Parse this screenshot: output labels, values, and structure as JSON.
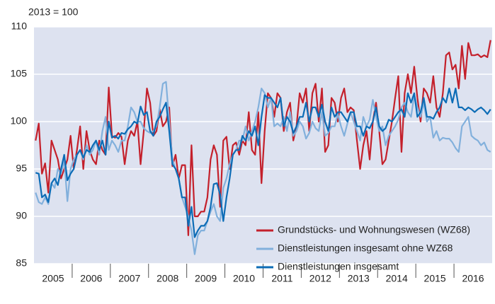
{
  "chart_data": {
    "type": "line",
    "title": "2013 = 100",
    "categories": [
      null,
      null,
      null,
      null,
      null,
      null,
      "2005",
      null,
      null,
      null,
      null,
      null,
      null,
      null,
      null,
      null,
      null,
      null,
      "2006",
      null,
      null,
      null,
      null,
      null,
      null,
      null,
      null,
      null,
      null,
      null,
      "2007",
      null,
      null,
      null,
      null,
      null,
      null,
      null,
      null,
      null,
      null,
      null,
      "2008",
      null,
      null,
      null,
      null,
      null,
      null,
      null,
      null,
      null,
      null,
      null,
      "2009",
      null,
      null,
      null,
      null,
      null,
      null,
      null,
      null,
      null,
      null,
      null,
      "2010",
      null,
      null,
      null,
      null,
      null,
      null,
      null,
      null,
      null,
      null,
      null,
      "2011",
      null,
      null,
      null,
      null,
      null,
      null,
      null,
      null,
      null,
      null,
      null,
      "2012",
      null,
      null,
      null,
      null,
      null,
      null,
      null,
      null,
      null,
      null,
      null,
      "2013",
      null,
      null,
      null,
      null,
      null,
      null,
      null,
      null,
      null,
      null,
      null,
      "2014",
      null,
      null,
      null,
      null,
      null,
      null,
      null,
      null,
      null,
      null,
      null,
      "2015",
      null,
      null,
      null,
      null,
      null,
      null,
      null,
      null,
      null,
      null,
      null,
      "2016",
      null,
      null,
      null,
      null,
      null
    ],
    "ylim": [
      85,
      110
    ],
    "yticks": [
      85,
      90,
      95,
      100,
      105,
      110
    ],
    "grid": true,
    "legend": "lower right",
    "series": [
      {
        "name": "Grundstücks- und Wohnungswesen (WZ68)",
        "color": "#c4202b",
        "values": [
          98,
          99.8,
          94.5,
          95.6,
          92.5,
          98,
          97,
          96,
          94,
          95,
          96,
          98.5,
          95,
          97,
          99.5,
          95,
          99,
          97,
          96,
          95.5,
          98,
          97,
          96.5,
          103.6,
          98.5,
          98.3,
          98.8,
          98.4,
          95.5,
          98,
          99,
          98.5,
          100,
          95.5,
          99,
          103.5,
          102,
          98.5,
          99,
          101.3,
          99.5,
          100,
          101.5,
          95.3,
          96.5,
          94,
          95.4,
          95.4,
          88,
          97.5,
          90,
          90,
          90.5,
          90.5,
          92,
          96,
          97.5,
          96.5,
          91,
          98,
          98.4,
          95,
          97.5,
          97.8,
          96.5,
          98,
          97.5,
          101,
          97,
          96.5,
          101,
          93.5,
          99,
          103,
          102.5,
          100.5,
          103,
          102.5,
          99,
          101,
          102,
          98,
          99.5,
          103,
          102,
          103.5,
          99,
          103,
          104,
          100,
          103.5,
          96.8,
          97.5,
          102.5,
          102,
          100,
          102.5,
          103.5,
          101,
          101.5,
          101.2,
          98,
          95,
          97.5,
          99,
          96,
          100,
          102,
          99,
          95.5,
          96,
          98,
          100,
          102.5,
          104.8,
          96.8,
          103,
          105,
          103,
          105.8,
          102.5,
          100,
          103.5,
          103,
          102,
          104.8,
          101.5,
          100.5,
          103,
          107,
          107.3,
          105.5,
          106,
          103.5,
          108,
          104.5,
          108.3,
          107,
          107,
          107.1,
          106.8,
          107,
          106.8,
          108.6
        ]
      },
      {
        "name": "Dienstleistungen insgesamt  ohne WZ68",
        "color": "#82b0dc",
        "values": [
          92.5,
          91.5,
          91.3,
          92,
          91.3,
          93.5,
          93,
          95,
          94.5,
          96,
          91.6,
          95,
          96,
          96.5,
          97,
          96,
          97.5,
          96.5,
          97,
          98,
          96.5,
          99,
          100.5,
          97,
          98,
          97.5,
          96.8,
          98,
          98,
          99.5,
          101.5,
          101,
          100,
          100,
          99.3,
          99,
          98.8,
          99,
          99.5,
          101.5,
          104,
          104.2,
          100,
          96,
          95,
          94,
          92,
          91,
          90,
          88.5,
          86,
          88,
          88.5,
          88.5,
          89.5,
          90.5,
          91.3,
          90,
          89.5,
          93,
          94,
          95.5,
          96.5,
          97,
          98,
          98,
          99.5,
          98,
          99,
          100,
          101.5,
          103.5,
          103,
          101.5,
          102.5,
          99.5,
          99.8,
          99.5,
          100.5,
          99,
          101,
          98.5,
          99,
          100,
          99.5,
          98.2,
          98.8,
          100,
          99.3,
          99,
          101,
          98.5,
          98.8,
          99.5,
          99.5,
          100.8,
          99.5,
          98.5,
          99.8,
          101,
          100,
          99,
          98,
          100.5,
          99.5,
          100.2,
          102.3,
          100.5,
          99,
          99.5,
          97.5,
          98.5,
          99,
          99.5,
          100.2,
          101.5,
          102,
          101,
          100.5,
          102.8,
          101.5,
          100.5,
          102,
          100,
          100.5,
          98.3,
          99,
          98,
          98.3,
          98.2,
          98.2,
          97.8,
          97.2,
          96.8,
          99.5,
          100,
          100.5,
          98.5,
          98.2,
          98,
          97.5,
          97.8,
          97,
          96.8
        ]
      },
      {
        "name": "Dienstleistungen insgesamt",
        "color": "#0c6cb6",
        "values": [
          94.6,
          94.5,
          92,
          92.3,
          91.5,
          93.5,
          94,
          93.3,
          95,
          96.5,
          93.8,
          94.5,
          95,
          96.5,
          97,
          96.2,
          97,
          96.8,
          97.5,
          98,
          97,
          98,
          96.5,
          100,
          98.3,
          98.5,
          98.2,
          98.8,
          98.7,
          99.2,
          99.5,
          100,
          99.8,
          101.6,
          100.7,
          101,
          99,
          98.5,
          100,
          100.5,
          101.3,
          102,
          99,
          95.5,
          95,
          94,
          92,
          92,
          89,
          91,
          87.8,
          88.5,
          89,
          89,
          89.5,
          91,
          93.4,
          93.5,
          92.3,
          89.5,
          92,
          94,
          96.5,
          97,
          97,
          98.5,
          98,
          99,
          98.5,
          99.5,
          97.5,
          100.5,
          102.8,
          102.5,
          102.5,
          102,
          101.5,
          102.5,
          99.5,
          100.5,
          100,
          98.8,
          99.5,
          100.5,
          100.5,
          102,
          100,
          101.5,
          101.5,
          100.5,
          101.8,
          100,
          99,
          101.5,
          100.5,
          101,
          101,
          100.5,
          100,
          101,
          101,
          99.5,
          99.5,
          98.5,
          99.5,
          99.3,
          100,
          101.5,
          99.5,
          99,
          99.3,
          100.2,
          100,
          100.5,
          101,
          101.3,
          100.5,
          103,
          102,
          103,
          100.5,
          101,
          102.5,
          100.5,
          100.5,
          100.3,
          101,
          101.5,
          102.5,
          102,
          103.5,
          102,
          103.5,
          101.5,
          101.5,
          101.2,
          101.5,
          101.3,
          101,
          101.3,
          101.5,
          101.2,
          100.8,
          101.3
        ]
      }
    ]
  }
}
